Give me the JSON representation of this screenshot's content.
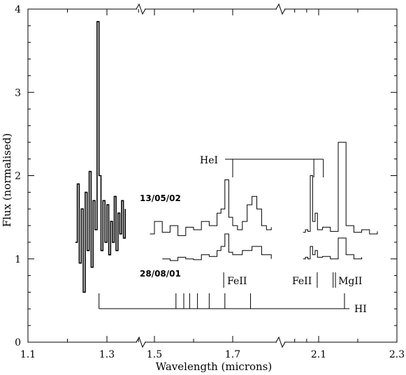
{
  "chart_data": {
    "type": "line",
    "title": "",
    "xlabel": "Wavelength (microns)",
    "ylabel": "Flux (normalised)",
    "xlim_panels": [
      [
        1.1,
        1.38
      ],
      [
        1.46,
        1.8
      ],
      [
        1.8,
        2.3
      ]
    ],
    "ylim": [
      0,
      4
    ],
    "x_ticks": [
      "1.1",
      "1.3",
      "1.5",
      "1.7",
      "2.1",
      "2.3"
    ],
    "x_tick_values": [
      1.1,
      1.3,
      1.5,
      1.7,
      2.1,
      2.3
    ],
    "y_ticks": [
      "0",
      "1",
      "2",
      "3",
      "4"
    ],
    "y_tick_values": [
      0,
      1,
      2,
      3,
      4
    ],
    "series": [
      {
        "name": "13/05/02",
        "segments": [
          {
            "x": [
              1.22,
              1.225,
              1.23,
              1.235,
              1.24,
              1.245,
              1.25,
              1.255,
              1.26,
              1.265,
              1.27,
              1.275,
              1.28,
              1.285,
              1.29,
              1.295,
              1.3,
              1.305,
              1.31,
              1.315,
              1.32,
              1.325,
              1.33,
              1.335,
              1.34,
              1.345,
              1.35
            ],
            "y": [
              1.2,
              1.9,
              0.95,
              1.6,
              0.6,
              1.8,
              1.1,
              2.05,
              0.9,
              1.7,
              1.35,
              3.85,
              2.0,
              1.1,
              1.7,
              1.2,
              1.65,
              1.05,
              1.45,
              1.2,
              1.75,
              1.1,
              1.55,
              1.3,
              1.7,
              1.25,
              1.6
            ]
          },
          {
            "x": [
              1.48,
              1.5,
              1.52,
              1.54,
              1.56,
              1.58,
              1.6,
              1.62,
              1.64,
              1.66,
              1.67,
              1.68,
              1.69,
              1.7,
              1.71,
              1.72,
              1.73,
              1.74,
              1.75,
              1.76,
              1.77,
              1.78
            ],
            "y": [
              1.3,
              1.45,
              1.32,
              1.4,
              1.28,
              1.38,
              1.35,
              1.45,
              1.4,
              1.55,
              1.6,
              1.95,
              1.5,
              1.4,
              1.35,
              1.45,
              1.65,
              1.75,
              1.6,
              1.4,
              1.35,
              1.38
            ]
          },
          {
            "x": [
              1.97,
              1.99,
              2.01,
              2.03,
              2.05,
              2.07,
              2.09,
              2.11,
              2.13,
              2.15,
              2.17,
              2.19,
              2.21,
              2.23,
              2.25
            ],
            "y": [
              1.32,
              1.35,
              1.33,
              2.0,
              1.45,
              1.55,
              1.35,
              1.38,
              1.33,
              2.4,
              1.4,
              1.32,
              1.35,
              1.3,
              1.33
            ]
          }
        ]
      },
      {
        "name": "28/08/01",
        "segments": [
          {
            "x": [
              1.52,
              1.54,
              1.56,
              1.58,
              1.6,
              1.62,
              1.64,
              1.66,
              1.67,
              1.68,
              1.69,
              1.7,
              1.72,
              1.74,
              1.76,
              1.78
            ],
            "y": [
              1.0,
              0.98,
              1.02,
              1.0,
              0.99,
              1.05,
              1.03,
              1.1,
              1.15,
              1.3,
              1.08,
              1.05,
              1.1,
              1.15,
              1.05,
              1.0
            ]
          },
          {
            "x": [
              1.97,
              1.99,
              2.01,
              2.03,
              2.05,
              2.07,
              2.09,
              2.11,
              2.13,
              2.15,
              2.17,
              2.19,
              2.21
            ],
            "y": [
              1.0,
              1.02,
              1.0,
              1.15,
              1.05,
              1.1,
              1.02,
              1.03,
              1.0,
              1.25,
              1.05,
              1.0,
              1.02
            ]
          }
        ]
      }
    ],
    "annotations": {
      "epoch_labels": [
        "13/05/02",
        "28/08/01"
      ],
      "line_ids": [
        {
          "label": "HeI",
          "marks_x": [
            1.7,
            2.06,
            2.112
          ]
        },
        {
          "label": "FeII",
          "marks_x": [
            1.677
          ]
        },
        {
          "label": "FeII",
          "marks_x": [
            2.088
          ]
        },
        {
          "label": "MgII",
          "marks_x": [
            2.137,
            2.143
          ]
        },
        {
          "label": "HI",
          "marks_x": [
            1.28,
            1.555,
            1.575,
            1.59,
            1.61,
            1.64,
            1.68,
            1.737,
            2.166
          ]
        }
      ]
    },
    "axis_breaks": "broken x-axis between 1.38–1.46 and at 1.8 (marked with zigzags)"
  },
  "colors": {
    "foreground": "#000000",
    "background": "#ffffff"
  }
}
